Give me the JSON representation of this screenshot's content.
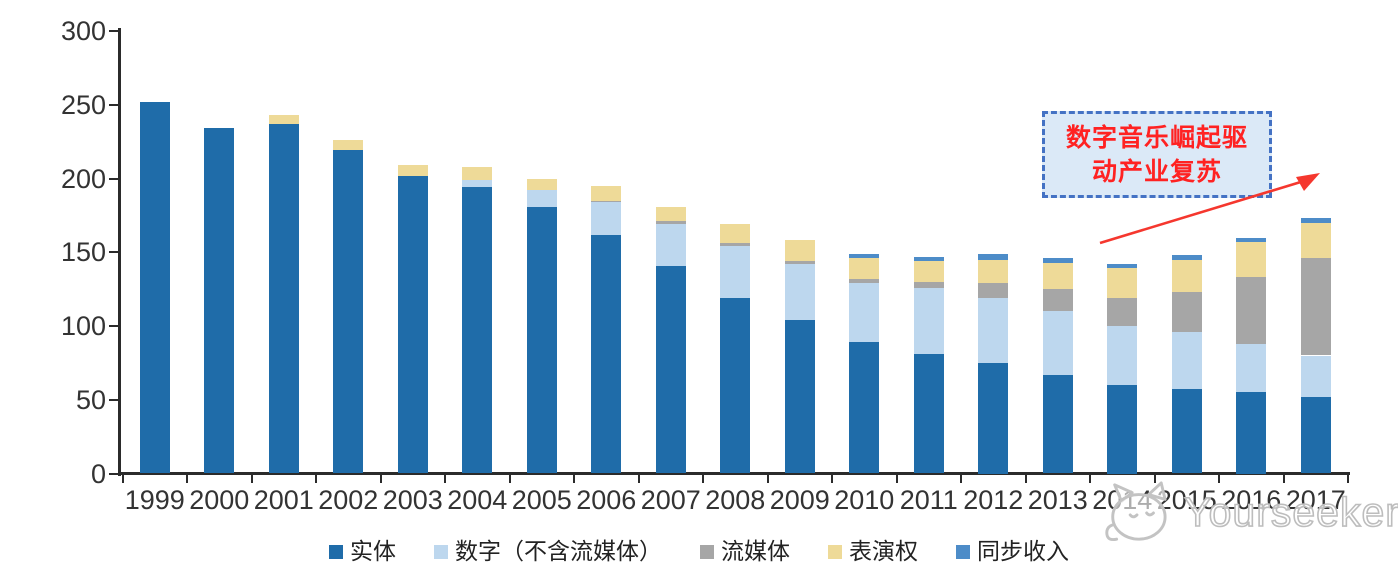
{
  "chart_data": {
    "type": "bar",
    "stacked": true,
    "categories": [
      "1999",
      "2000",
      "2001",
      "2002",
      "2003",
      "2004",
      "2005",
      "2006",
      "2007",
      "2008",
      "2009",
      "2010",
      "2011",
      "2012",
      "2013",
      "2014",
      "2015",
      "2016",
      "2017"
    ],
    "series": [
      {
        "name": "实体",
        "color": "#1F6CA9",
        "values": [
          252,
          234,
          237,
          219,
          202,
          194,
          181,
          162,
          141,
          119,
          104,
          89,
          81,
          75,
          67,
          60,
          57,
          55,
          52
        ]
      },
      {
        "name": "数字（不含流媒体）",
        "color": "#BDD7EE",
        "values": [
          0,
          0,
          0,
          0,
          0,
          5,
          11,
          22,
          28,
          35,
          38,
          40,
          45,
          44,
          43,
          40,
          39,
          33,
          28
        ]
      },
      {
        "name": "流媒体",
        "color": "#A6A6A6",
        "values": [
          0,
          0,
          0,
          0,
          0,
          0,
          0,
          1,
          2,
          2,
          2,
          3,
          4,
          10,
          15,
          19,
          27,
          45,
          66
        ]
      },
      {
        "name": "表演权",
        "color": "#EEDA98",
        "values": [
          0,
          0,
          6,
          7,
          7,
          9,
          8,
          10,
          10,
          13,
          14,
          14,
          14,
          16,
          18,
          20,
          22,
          24,
          24
        ]
      },
      {
        "name": "同步收入",
        "color": "#4D8CC8",
        "values": [
          0,
          0,
          0,
          0,
          0,
          0,
          0,
          0,
          0,
          0,
          0,
          3,
          3,
          4,
          3,
          3,
          3,
          3,
          3
        ]
      }
    ],
    "y_ticks": [
      300,
      250,
      200,
      150,
      100,
      50,
      0
    ],
    "ylim": [
      0,
      300
    ],
    "grid": false,
    "legend_position": "bottom",
    "axis_color": "#2b2b2b"
  },
  "annotation": {
    "line1": "数字音乐崛起驱",
    "line2": "动产业复苏",
    "text_color": "#FF2222",
    "border_color": "#4472C4",
    "bg_color": "#DBE9F7",
    "arrow_color": "#F5372E"
  },
  "watermark": {
    "text": "Yourseeker"
  }
}
